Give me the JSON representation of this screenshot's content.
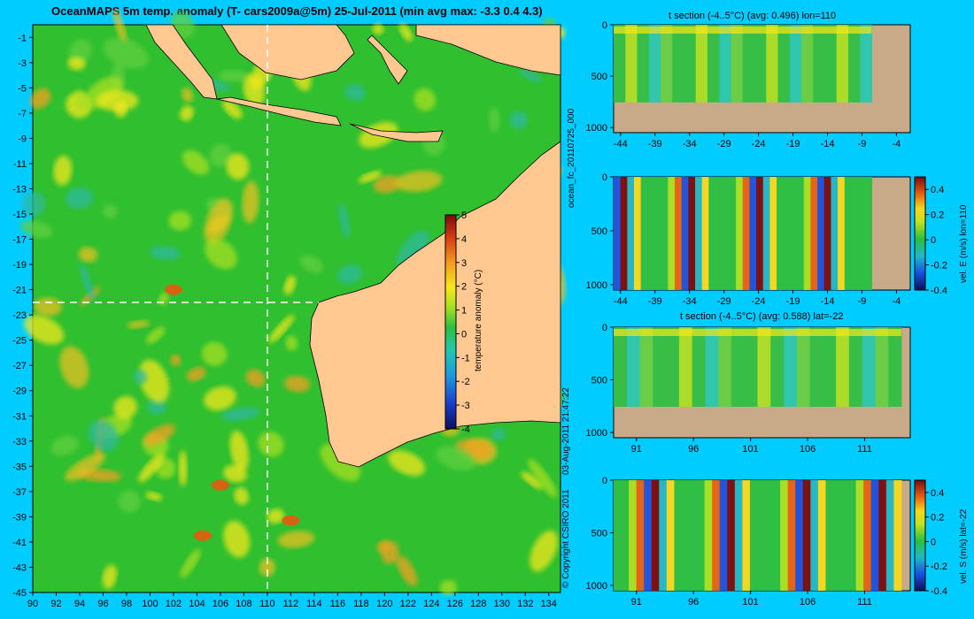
{
  "map": {
    "title": "OceanMAPS 5m temp. anomaly (T- cars2009a@5m) 25-Jul-2011 (min avg max: -3.3 0.4 4.3)",
    "lat_ticks": [
      "-1",
      "-3",
      "-5",
      "-7",
      "-9",
      "-11",
      "-13",
      "-15",
      "-17",
      "-19",
      "-21",
      "-23",
      "-25",
      "-27",
      "-29",
      "-31",
      "-33",
      "-35",
      "-37",
      "-39",
      "-41",
      "-43",
      "-45"
    ],
    "lon_ticks": [
      "90",
      "92",
      "94",
      "96",
      "98",
      "100",
      "102",
      "104",
      "106",
      "108",
      "110",
      "112",
      "114",
      "116",
      "118",
      "120",
      "122",
      "124",
      "126",
      "128",
      "130",
      "132",
      "134"
    ],
    "colorbar": {
      "label": "temperature anomaly (°C)",
      "ticks": [
        "5",
        "4",
        "3",
        "2",
        "1",
        "0",
        "-1",
        "-2",
        "-3",
        "-4"
      ]
    },
    "colors": {
      "ocean": "#2fbf2f",
      "land": "#ffc890",
      "warm": "#f4e81a",
      "hot": "#e85a10",
      "cool": "#2fb9a0"
    }
  },
  "side_text": {
    "run_id": "ocean_fc_20110725_000",
    "timestamp": "03-Aug-2011 21:47:22",
    "copyright": "© Copyright CSIRO 2011"
  },
  "panels": [
    {
      "title": "t section (-4..5°C) (avg: 0.496) lon=110",
      "y_ticks": [
        "0",
        "500",
        "1000"
      ],
      "x_ticks": [
        "-44",
        "-39",
        "-34",
        "-29",
        "-24",
        "-19",
        "-14",
        "-9",
        "-4"
      ]
    },
    {
      "title": "",
      "y_ticks": [
        "0",
        "500",
        "1000"
      ],
      "x_ticks": [
        "-44",
        "-39",
        "-34",
        "-29",
        "-24",
        "-19",
        "-14",
        "-9",
        "-4"
      ],
      "cbar_label": "vel. E (m/s) lon=110",
      "cbar_ticks": [
        "0.4",
        "0.2",
        "0",
        "-0.2",
        "-0.4"
      ]
    },
    {
      "title": "t section (-4..5°C) (avg: 0.588) lat=-22",
      "y_ticks": [
        "0",
        "500",
        "1000"
      ],
      "x_ticks": [
        "91",
        "96",
        "101",
        "106",
        "111"
      ]
    },
    {
      "title": "",
      "y_ticks": [
        "0",
        "500",
        "1000"
      ],
      "x_ticks": [
        "91",
        "96",
        "101",
        "106",
        "111"
      ],
      "cbar_label": "vel. S (m/s) lat=-22",
      "cbar_ticks": [
        "0.4",
        "0.2",
        "0",
        "-0.2",
        "-0.4"
      ]
    }
  ],
  "chart_data": [
    {
      "type": "heatmap",
      "title": "OceanMAPS 5m temp. anomaly (T- cars2009a@5m) 25-Jul-2011 (min avg max: -3.3 0.4 4.3)",
      "xlabel": "",
      "ylabel": "",
      "xlim": [
        90,
        135
      ],
      "ylim": [
        -45,
        0
      ],
      "x_ticks": [
        90,
        92,
        94,
        96,
        98,
        100,
        102,
        104,
        106,
        108,
        110,
        112,
        114,
        116,
        118,
        120,
        122,
        124,
        126,
        128,
        130,
        132,
        134
      ],
      "y_ticks": [
        -1,
        -3,
        -5,
        -7,
        -9,
        -11,
        -13,
        -15,
        -17,
        -19,
        -21,
        -23,
        -25,
        -27,
        -29,
        -31,
        -33,
        -35,
        -37,
        -39,
        -41,
        -43,
        -45
      ],
      "colorbar": {
        "label": "temperature anomaly (°C)",
        "range": [
          -4,
          5
        ]
      },
      "summary": {
        "min": -3.3,
        "avg": 0.4,
        "max": 4.3
      },
      "section_lines": {
        "lon": 110,
        "lat": -22
      }
    },
    {
      "type": "heatmap",
      "title": "t section (-4..5°C) (avg: 0.496) lon=110",
      "xlim": [
        -45,
        -2
      ],
      "ylim": [
        1050,
        0
      ],
      "x_ticks": [
        -44,
        -39,
        -34,
        -29,
        -24,
        -19,
        -14,
        -9,
        -4
      ],
      "y_ticks": [
        0,
        500,
        1000
      ],
      "value_range": [
        -4,
        5
      ],
      "avg": 0.496
    },
    {
      "type": "heatmap",
      "title": "",
      "xlim": [
        -45,
        -2
      ],
      "ylim": [
        1050,
        0
      ],
      "x_ticks": [
        -44,
        -39,
        -34,
        -29,
        -24,
        -19,
        -14,
        -9,
        -4
      ],
      "y_ticks": [
        0,
        500,
        1000
      ],
      "colorbar": {
        "label": "vel. E (m/s) lon=110",
        "range": [
          -0.4,
          0.5
        ]
      }
    },
    {
      "type": "heatmap",
      "title": "t section (-4..5°C) (avg: 0.588) lat=-22",
      "xlim": [
        89,
        115
      ],
      "ylim": [
        1050,
        0
      ],
      "x_ticks": [
        91,
        96,
        101,
        106,
        111
      ],
      "y_ticks": [
        0,
        500,
        1000
      ],
      "value_range": [
        -4,
        5
      ],
      "avg": 0.588
    },
    {
      "type": "heatmap",
      "title": "",
      "xlim": [
        89,
        115
      ],
      "ylim": [
        1050,
        0
      ],
      "x_ticks": [
        91,
        96,
        101,
        106,
        111
      ],
      "y_ticks": [
        0,
        500,
        1000
      ],
      "colorbar": {
        "label": "vel. S (m/s) lat=-22",
        "range": [
          -0.4,
          0.5
        ]
      }
    }
  ]
}
